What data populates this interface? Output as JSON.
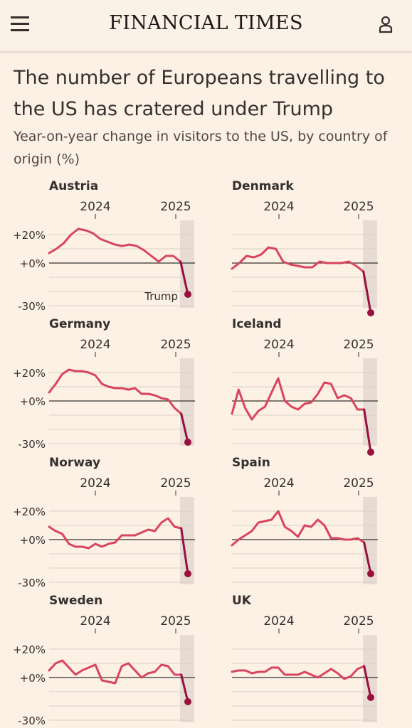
{
  "header": {
    "masthead": "FINANCIAL TIMES",
    "menu_icon": "hamburger-menu-icon",
    "user_icon": "user-account-icon"
  },
  "article": {
    "headline": "The number of Europeans travelling to the US has cratered under Trump",
    "subtitle": "Year-on-year change in visitors to the US, by country of origin (%)"
  },
  "colors": {
    "background": "#fdf1e6",
    "line": "#d8455d",
    "final_segment": "#990f3d",
    "shade": "#e6dcd3",
    "zero_line": "#33302e",
    "grid": "#d9d0c7"
  },
  "chart_data": {
    "type": "line",
    "layout": "small-multiples",
    "x_ticks": [
      "2024",
      "2025"
    ],
    "y_ticks": [
      "+20%",
      "+0%",
      "-30%"
    ],
    "ylim": [
      -30,
      30
    ],
    "shaded_region_label": "Trump",
    "series": [
      {
        "name": "Austria",
        "values": [
          7,
          10,
          14,
          20,
          24,
          23,
          21,
          17,
          15,
          13,
          12,
          13,
          12,
          9,
          5,
          1,
          5,
          5,
          1,
          -22
        ]
      },
      {
        "name": "Denmark",
        "values": [
          -4,
          0,
          5,
          4,
          6,
          11,
          10,
          1,
          -1,
          -2,
          -3,
          -3,
          1,
          0,
          0,
          0,
          1,
          -2,
          -6,
          -35
        ]
      },
      {
        "name": "Germany",
        "values": [
          6,
          12,
          19,
          22,
          21,
          21,
          20,
          18,
          12,
          10,
          9,
          9,
          8,
          9,
          5,
          5,
          4,
          2,
          1,
          -5,
          -9,
          -29
        ]
      },
      {
        "name": "Iceland",
        "values": [
          -9,
          8,
          -5,
          -13,
          -7,
          -4,
          6,
          16,
          0,
          -4,
          -6,
          -2,
          -1,
          5,
          13,
          12,
          2,
          4,
          2,
          -6,
          -6,
          -36
        ]
      },
      {
        "name": "Norway",
        "values": [
          9,
          6,
          4,
          -3,
          -5,
          -5,
          -6,
          -3,
          -5,
          -3,
          -2,
          3,
          3,
          3,
          5,
          7,
          6,
          12,
          15,
          9,
          8,
          -24
        ]
      },
      {
        "name": "Spain",
        "values": [
          -4,
          0,
          3,
          6,
          12,
          13,
          14,
          20,
          9,
          6,
          2,
          10,
          9,
          14,
          10,
          1,
          1,
          0,
          0,
          1,
          -2,
          -24
        ]
      },
      {
        "name": "Sweden",
        "values": [
          5,
          10,
          12,
          7,
          2,
          5,
          7,
          9,
          -2,
          -3,
          -4,
          8,
          10,
          5,
          0,
          3,
          4,
          9,
          8,
          2,
          2,
          -17
        ]
      },
      {
        "name": "UK",
        "values": [
          4,
          5,
          5,
          3,
          4,
          4,
          7,
          7,
          2,
          2,
          2,
          4,
          2,
          0,
          3,
          6,
          3,
          -1,
          1,
          6,
          8,
          -14
        ]
      }
    ]
  }
}
